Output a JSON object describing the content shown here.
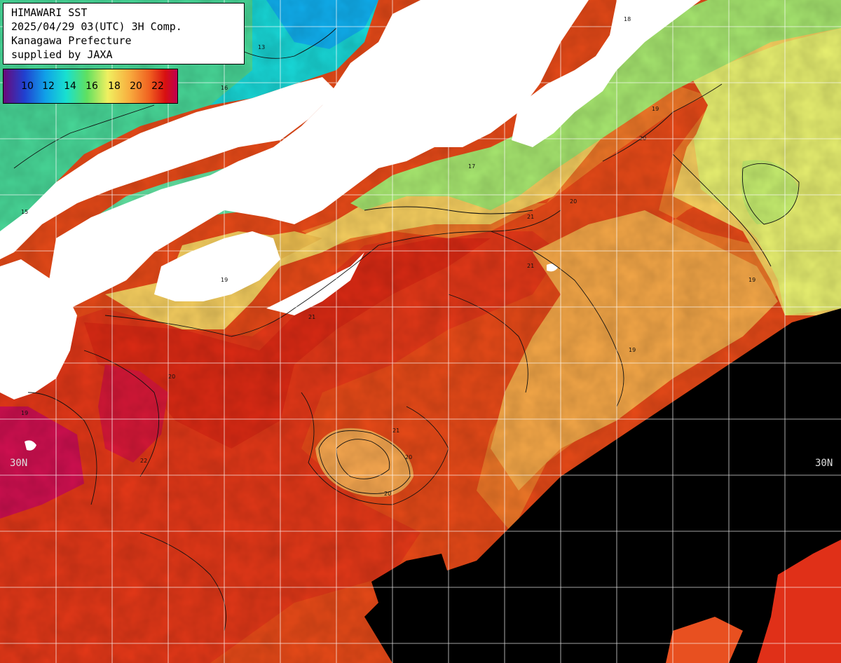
{
  "header": {
    "line1": "HIMAWARI SST",
    "line2": "2025/04/29 03(UTC) 3H Comp.",
    "line3": "Kanagawa Prefecture",
    "line4": "supplied by JAXA"
  },
  "legend": {
    "ticks": [
      "10",
      "12",
      "14",
      "16",
      "18",
      "20",
      "22"
    ],
    "colors": [
      "#6a0a7a",
      "#2040d0",
      "#10a0e8",
      "#18e0d0",
      "#60e060",
      "#f0f060",
      "#f8b040",
      "#f06020",
      "#d81010",
      "#c00050"
    ]
  },
  "grid": {
    "lat_label_left": "30N",
    "lat_label_right": "30N"
  },
  "contour_labels": [
    "19",
    "20",
    "21",
    "19",
    "20",
    "21",
    "19",
    "20",
    "21",
    "19",
    "20",
    "22",
    "17",
    "18",
    "19",
    "20",
    "21",
    "13",
    "16",
    "15"
  ],
  "colors": {
    "land": "#ffffff",
    "no_data": "#000000",
    "grid": "#ffffff",
    "contour": "#111111"
  }
}
